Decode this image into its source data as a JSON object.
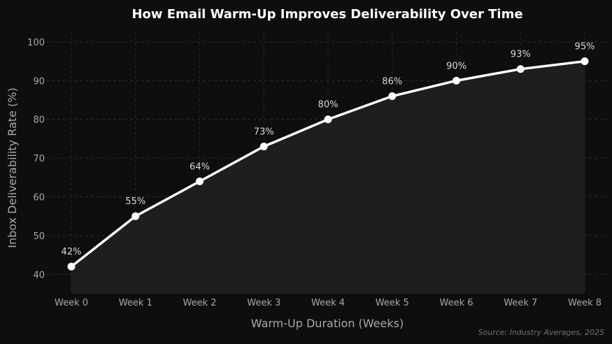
{
  "chart_data": {
    "type": "line",
    "title": "How Email Warm-Up Improves Deliverability Over Time",
    "xlabel": "Warm-Up Duration (Weeks)",
    "ylabel": "Inbox Deliverability Rate (%)",
    "categories": [
      "Week 0",
      "Week 1",
      "Week 2",
      "Week 3",
      "Week 4",
      "Week 5",
      "Week 6",
      "Week 7",
      "Week 8"
    ],
    "values": [
      42,
      55,
      64,
      73,
      80,
      86,
      90,
      93,
      95
    ],
    "data_labels": [
      "42%",
      "55%",
      "64%",
      "73%",
      "80%",
      "86%",
      "90%",
      "93%",
      "95%"
    ],
    "yticks": [
      40,
      50,
      60,
      70,
      80,
      90,
      100
    ],
    "ylim": [
      35,
      102.7
    ],
    "grid": true,
    "area_fill": true,
    "annotation": "Source: Industry Averages, 2025",
    "colors": {
      "background": "#0e0e0e",
      "line": "#ffffff",
      "fill": "#1e1e1e",
      "grid": "#2a2a2a",
      "text": "#a8a8a8"
    }
  }
}
